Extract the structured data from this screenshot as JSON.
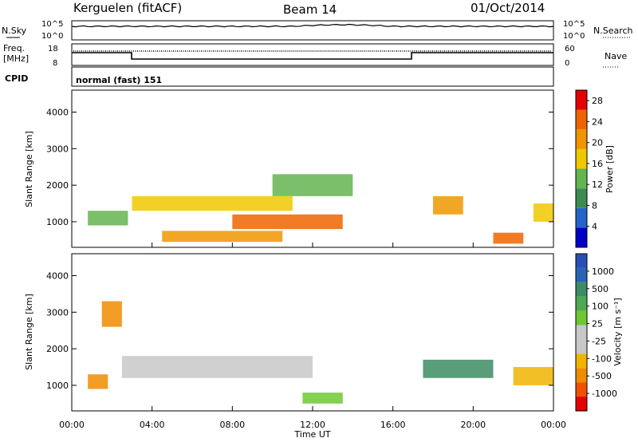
{
  "header": {
    "station": "Kerguelen (fitACF)",
    "beam": "Beam 14",
    "date": "01/Oct/2014"
  },
  "noise_panel": {
    "left_label": "N.Sky",
    "right_label": "N.Search",
    "left_ticks": [
      "10^5",
      "10^0"
    ],
    "right_ticks": [
      "10^5",
      "10^0"
    ]
  },
  "freq_panel": {
    "left_label_line1": "Freq.",
    "left_label_line2": "[MHz]",
    "right_label": "Nave",
    "left_ticks": [
      "18",
      "8"
    ],
    "right_ticks": [
      "60",
      "0"
    ]
  },
  "cpid_panel": {
    "label": "CPID",
    "text": "normal (fast) 151"
  },
  "colors": {
    "power_scale": [
      "#0000c8",
      "#2464c8",
      "#3c8c50",
      "#64b450",
      "#f0c800",
      "#f09600",
      "#f06400",
      "#e60000"
    ],
    "velocity_scale": [
      "#2850b4",
      "#3c8c64",
      "#4caa50",
      "#6ec832",
      "#c8c8c8",
      "#f0b400",
      "#f08c00",
      "#f05000",
      "#e60000"
    ]
  },
  "chart_data": [
    {
      "type": "heatmap",
      "title": "",
      "ylabel": "Slant Range [km]",
      "xlabel": "",
      "ylim": [
        300,
        4600
      ],
      "y_ticks": [
        "1000",
        "2000",
        "3000",
        "4000"
      ],
      "colorbar": {
        "label": "Power [dB]",
        "ticks": [
          "4",
          "8",
          "12",
          "16",
          "20",
          "24",
          "28"
        ],
        "range": [
          0,
          30
        ]
      },
      "echo_regions": [
        {
          "t0": 0.8,
          "t1": 2.8,
          "r0": 900,
          "r1": 1300,
          "v": 12
        },
        {
          "t0": 3.0,
          "t1": 11.0,
          "r0": 1300,
          "r1": 1700,
          "v": 16
        },
        {
          "t0": 8.0,
          "t1": 13.5,
          "r0": 800,
          "r1": 1200,
          "v": 24
        },
        {
          "t0": 4.5,
          "t1": 10.5,
          "r0": 450,
          "r1": 750,
          "v": 20
        },
        {
          "t0": 10.0,
          "t1": 14.0,
          "r0": 1700,
          "r1": 2300,
          "v": 14
        },
        {
          "t0": 18.0,
          "t1": 19.5,
          "r0": 1200,
          "r1": 1700,
          "v": 22
        },
        {
          "t0": 21.0,
          "t1": 22.5,
          "r0": 400,
          "r1": 700,
          "v": 24
        },
        {
          "t0": 23.0,
          "t1": 24.0,
          "r0": 1000,
          "r1": 1500,
          "v": 18
        }
      ]
    },
    {
      "type": "heatmap",
      "title": "",
      "ylabel": "Slant Range [km]",
      "xlabel": "Time UT",
      "ylim": [
        300,
        4600
      ],
      "y_ticks": [
        "1000",
        "2000",
        "3000",
        "4000"
      ],
      "x_ticks": [
        "00:00",
        "04:00",
        "08:00",
        "12:00",
        "16:00",
        "20:00",
        "00:00"
      ],
      "colorbar": {
        "label": "Velocity [m s⁻¹]",
        "ticks": [
          "1000",
          "500",
          "100",
          "25",
          "-25",
          "-100",
          "-500",
          "-1000"
        ]
      },
      "echo_regions": [
        {
          "t0": 2.5,
          "t1": 12.0,
          "r0": 1200,
          "r1": 1800,
          "v": 0
        },
        {
          "t0": 11.5,
          "t1": 13.5,
          "r0": 500,
          "r1": 800,
          "v": 50
        },
        {
          "t0": 0.8,
          "t1": 1.8,
          "r0": 900,
          "r1": 1300,
          "v": -200
        },
        {
          "t0": 1.5,
          "t1": 2.5,
          "r0": 2600,
          "r1": 3300,
          "v": -200
        },
        {
          "t0": 17.5,
          "t1": 21.0,
          "r0": 1200,
          "r1": 1700,
          "v": 150
        },
        {
          "t0": 22.0,
          "t1": 24.0,
          "r0": 1000,
          "r1": 1500,
          "v": -80
        }
      ]
    }
  ]
}
